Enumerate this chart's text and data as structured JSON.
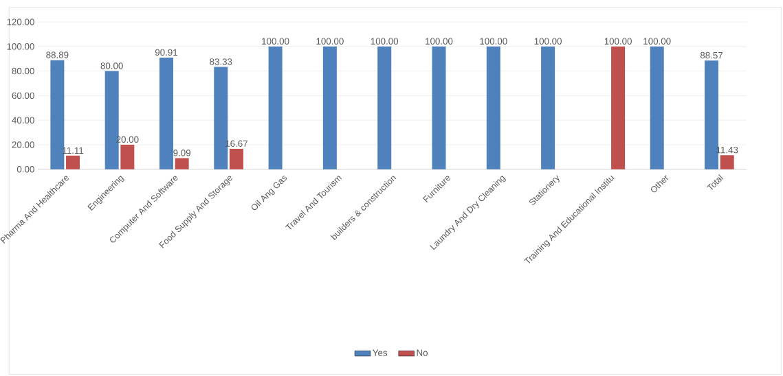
{
  "chart_data": {
    "type": "bar",
    "categories": [
      "Pharma And Healthcare",
      "Engineering",
      "Computer And Software",
      "Food Supply And Storage",
      "Oil Ang Gas",
      "Travel And Tourism",
      "builders & construction",
      "Furniture",
      "Laundry And Dry Cleaning",
      "Stationery",
      "Training And Educational Institu",
      "Other",
      "Total"
    ],
    "series": [
      {
        "name": "Yes",
        "color": "#4f81bd",
        "values": [
          88.89,
          80.0,
          90.91,
          83.33,
          100,
          100,
          100,
          100,
          100,
          100,
          null,
          100,
          88.57
        ],
        "value_labels": [
          "88.89",
          "80.00",
          "90.91",
          "83.33",
          "100.00",
          "100.00",
          "100.00",
          "100.00",
          "100.00",
          "100.00",
          null,
          "100.00",
          "88.57"
        ]
      },
      {
        "name": "No",
        "color": "#c0504d",
        "values": [
          11.11,
          20.0,
          9.09,
          16.67,
          null,
          null,
          null,
          null,
          null,
          null,
          100,
          null,
          11.43
        ],
        "value_labels": [
          "11.11",
          "20.00",
          "9.09",
          "16.67",
          null,
          null,
          null,
          null,
          null,
          null,
          "100.00",
          null,
          "11.43"
        ]
      }
    ],
    "ylim": [
      0,
      120
    ],
    "yticks": [
      {
        "value": 0,
        "label": "0.00"
      },
      {
        "value": 20,
        "label": "20.00"
      },
      {
        "value": 40,
        "label": "40.00"
      },
      {
        "value": 60,
        "label": "60.00"
      },
      {
        "value": 80,
        "label": "80.00"
      },
      {
        "value": 100,
        "label": "100.00"
      },
      {
        "value": 120,
        "label": "120.00"
      }
    ],
    "grid": "y",
    "legend": "bottom"
  }
}
